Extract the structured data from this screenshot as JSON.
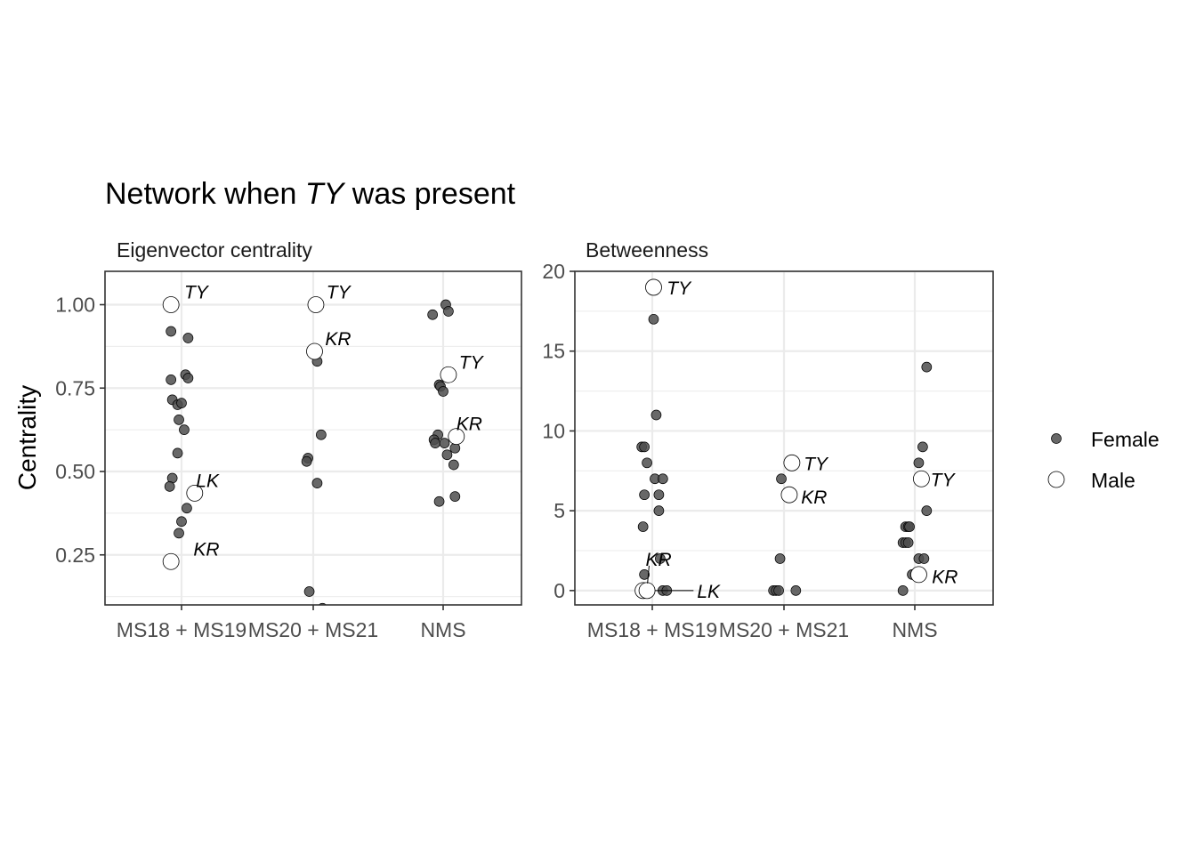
{
  "title": {
    "before": "Network when ",
    "italic": "TY",
    "after": " was present"
  },
  "ylabel": "Centrality",
  "colors": {
    "female": "#4d4d4d",
    "male": "#ffffff",
    "grid": "#ebebeb",
    "frame": "#333333"
  },
  "legend": {
    "items": [
      {
        "label": "Female",
        "kind": "female"
      },
      {
        "label": "Male",
        "kind": "male"
      }
    ],
    "position": "right"
  },
  "chart_data": [
    {
      "type": "scatter",
      "subtitle": "Eigenvector centrality",
      "categories": [
        "MS18 + MS19",
        "MS20 + MS21",
        "NMS"
      ],
      "ylim": [
        0.1,
        1.1
      ],
      "yticks": [
        0.25,
        0.5,
        0.75,
        1.0
      ],
      "ytick_labels": [
        "0.25",
        "0.50",
        "0.75",
        "1.00"
      ],
      "grid": true,
      "points": [
        {
          "cat": 0,
          "dx": -0.08,
          "y": 0.92,
          "sex": "female"
        },
        {
          "cat": 0,
          "dx": 0.05,
          "y": 0.9,
          "sex": "female"
        },
        {
          "cat": 0,
          "dx": 0.03,
          "y": 0.79,
          "sex": "female"
        },
        {
          "cat": 0,
          "dx": 0.05,
          "y": 0.78,
          "sex": "female"
        },
        {
          "cat": 0,
          "dx": -0.08,
          "y": 0.775,
          "sex": "female"
        },
        {
          "cat": 0,
          "dx": -0.07,
          "y": 0.715,
          "sex": "female"
        },
        {
          "cat": 0,
          "dx": -0.03,
          "y": 0.7,
          "sex": "female"
        },
        {
          "cat": 0,
          "dx": 0.0,
          "y": 0.705,
          "sex": "female"
        },
        {
          "cat": 0,
          "dx": -0.02,
          "y": 0.655,
          "sex": "female"
        },
        {
          "cat": 0,
          "dx": 0.02,
          "y": 0.625,
          "sex": "female"
        },
        {
          "cat": 0,
          "dx": -0.03,
          "y": 0.555,
          "sex": "female"
        },
        {
          "cat": 0,
          "dx": -0.07,
          "y": 0.48,
          "sex": "female"
        },
        {
          "cat": 0,
          "dx": -0.09,
          "y": 0.455,
          "sex": "female"
        },
        {
          "cat": 0,
          "dx": 0.04,
          "y": 0.39,
          "sex": "female"
        },
        {
          "cat": 0,
          "dx": 0.0,
          "y": 0.35,
          "sex": "female"
        },
        {
          "cat": 0,
          "dx": -0.02,
          "y": 0.315,
          "sex": "female"
        },
        {
          "cat": 1,
          "dx": 0.03,
          "y": 0.83,
          "sex": "female"
        },
        {
          "cat": 1,
          "dx": 0.06,
          "y": 0.61,
          "sex": "female"
        },
        {
          "cat": 1,
          "dx": -0.04,
          "y": 0.54,
          "sex": "female"
        },
        {
          "cat": 1,
          "dx": -0.05,
          "y": 0.53,
          "sex": "female"
        },
        {
          "cat": 1,
          "dx": 0.03,
          "y": 0.465,
          "sex": "female"
        },
        {
          "cat": 1,
          "dx": -0.03,
          "y": 0.14,
          "sex": "female"
        },
        {
          "cat": 1,
          "dx": 0.07,
          "y": 0.09,
          "sex": "female"
        },
        {
          "cat": 2,
          "dx": 0.02,
          "y": 1.0,
          "sex": "female"
        },
        {
          "cat": 2,
          "dx": -0.08,
          "y": 0.97,
          "sex": "female"
        },
        {
          "cat": 2,
          "dx": 0.04,
          "y": 0.98,
          "sex": "female"
        },
        {
          "cat": 2,
          "dx": -0.03,
          "y": 0.76,
          "sex": "female"
        },
        {
          "cat": 2,
          "dx": -0.02,
          "y": 0.755,
          "sex": "female"
        },
        {
          "cat": 2,
          "dx": 0.0,
          "y": 0.74,
          "sex": "female"
        },
        {
          "cat": 2,
          "dx": -0.04,
          "y": 0.61,
          "sex": "female"
        },
        {
          "cat": 2,
          "dx": -0.07,
          "y": 0.595,
          "sex": "female"
        },
        {
          "cat": 2,
          "dx": -0.06,
          "y": 0.585,
          "sex": "female"
        },
        {
          "cat": 2,
          "dx": 0.01,
          "y": 0.585,
          "sex": "female"
        },
        {
          "cat": 2,
          "dx": 0.09,
          "y": 0.57,
          "sex": "female"
        },
        {
          "cat": 2,
          "dx": 0.03,
          "y": 0.55,
          "sex": "female"
        },
        {
          "cat": 2,
          "dx": 0.08,
          "y": 0.52,
          "sex": "female"
        },
        {
          "cat": 2,
          "dx": 0.09,
          "y": 0.425,
          "sex": "female"
        },
        {
          "cat": 2,
          "dx": -0.03,
          "y": 0.41,
          "sex": "female"
        },
        {
          "cat": 0,
          "dx": -0.08,
          "y": 1.0,
          "sex": "male",
          "label": "TY",
          "ldx": 0.1,
          "ldy": 0.04
        },
        {
          "cat": 0,
          "dx": 0.1,
          "y": 0.435,
          "sex": "male",
          "label": "LK",
          "ldx": 0.01,
          "ldy": 0.04
        },
        {
          "cat": 0,
          "dx": -0.08,
          "y": 0.23,
          "sex": "male",
          "label": "KR",
          "ldx": 0.17,
          "ldy": 0.04
        },
        {
          "cat": 1,
          "dx": 0.02,
          "y": 1.0,
          "sex": "male",
          "label": "TY",
          "ldx": 0.08,
          "ldy": 0.04
        },
        {
          "cat": 1,
          "dx": 0.01,
          "y": 0.86,
          "sex": "male",
          "label": "KR",
          "ldx": 0.08,
          "ldy": 0.04
        },
        {
          "cat": 2,
          "dx": 0.04,
          "y": 0.79,
          "sex": "male",
          "label": "TY",
          "ldx": 0.08,
          "ldy": 0.04
        },
        {
          "cat": 2,
          "dx": 0.1,
          "y": 0.605,
          "sex": "male",
          "label": "KR",
          "ldx": 0.0,
          "ldy": 0.04
        }
      ]
    },
    {
      "type": "scatter",
      "subtitle": "Betweenness",
      "categories": [
        "MS18 + MS19",
        "MS20 + MS21",
        "NMS"
      ],
      "ylim": [
        -0.9,
        20.0
      ],
      "yticks": [
        0,
        5,
        10,
        15,
        20
      ],
      "ytick_labels": [
        "0",
        "5",
        "10",
        "15",
        "20"
      ],
      "grid": true,
      "points": [
        {
          "cat": 0,
          "dx": 0.01,
          "y": 17,
          "sex": "female"
        },
        {
          "cat": 0,
          "dx": 0.03,
          "y": 11,
          "sex": "female"
        },
        {
          "cat": 0,
          "dx": -0.08,
          "y": 9,
          "sex": "female"
        },
        {
          "cat": 0,
          "dx": -0.06,
          "y": 9,
          "sex": "female"
        },
        {
          "cat": 0,
          "dx": -0.04,
          "y": 8,
          "sex": "female"
        },
        {
          "cat": 0,
          "dx": 0.02,
          "y": 7,
          "sex": "female"
        },
        {
          "cat": 0,
          "dx": 0.08,
          "y": 7,
          "sex": "female"
        },
        {
          "cat": 0,
          "dx": -0.06,
          "y": 6,
          "sex": "female"
        },
        {
          "cat": 0,
          "dx": 0.05,
          "y": 6,
          "sex": "female"
        },
        {
          "cat": 0,
          "dx": 0.05,
          "y": 5,
          "sex": "female"
        },
        {
          "cat": 0,
          "dx": -0.07,
          "y": 4,
          "sex": "female"
        },
        {
          "cat": 0,
          "dx": 0.06,
          "y": 2,
          "sex": "female"
        },
        {
          "cat": 0,
          "dx": -0.06,
          "y": 1,
          "sex": "female"
        },
        {
          "cat": 0,
          "dx": 0.08,
          "y": 0,
          "sex": "female"
        },
        {
          "cat": 0,
          "dx": 0.11,
          "y": 0,
          "sex": "female"
        },
        {
          "cat": 0,
          "dx": -0.03,
          "y": 0,
          "sex": "female"
        },
        {
          "cat": 1,
          "dx": -0.02,
          "y": 7,
          "sex": "female"
        },
        {
          "cat": 1,
          "dx": -0.03,
          "y": 2,
          "sex": "female"
        },
        {
          "cat": 1,
          "dx": -0.08,
          "y": 0,
          "sex": "female"
        },
        {
          "cat": 1,
          "dx": -0.06,
          "y": 0,
          "sex": "female"
        },
        {
          "cat": 1,
          "dx": -0.04,
          "y": 0,
          "sex": "female"
        },
        {
          "cat": 1,
          "dx": 0.09,
          "y": 0,
          "sex": "female"
        },
        {
          "cat": 2,
          "dx": 0.09,
          "y": 14,
          "sex": "female"
        },
        {
          "cat": 2,
          "dx": 0.06,
          "y": 9,
          "sex": "female"
        },
        {
          "cat": 2,
          "dx": 0.03,
          "y": 8,
          "sex": "female"
        },
        {
          "cat": 2,
          "dx": 0.09,
          "y": 5,
          "sex": "female"
        },
        {
          "cat": 2,
          "dx": -0.07,
          "y": 4,
          "sex": "female"
        },
        {
          "cat": 2,
          "dx": -0.05,
          "y": 4,
          "sex": "female"
        },
        {
          "cat": 2,
          "dx": -0.04,
          "y": 4,
          "sex": "female"
        },
        {
          "cat": 2,
          "dx": -0.09,
          "y": 3,
          "sex": "female"
        },
        {
          "cat": 2,
          "dx": -0.07,
          "y": 3,
          "sex": "female"
        },
        {
          "cat": 2,
          "dx": -0.05,
          "y": 3,
          "sex": "female"
        },
        {
          "cat": 2,
          "dx": 0.03,
          "y": 2,
          "sex": "female"
        },
        {
          "cat": 2,
          "dx": 0.07,
          "y": 2,
          "sex": "female"
        },
        {
          "cat": 2,
          "dx": -0.02,
          "y": 1,
          "sex": "female"
        },
        {
          "cat": 2,
          "dx": 0.05,
          "y": 1,
          "sex": "female"
        },
        {
          "cat": 2,
          "dx": -0.09,
          "y": 0,
          "sex": "female"
        },
        {
          "cat": 0,
          "dx": 0.01,
          "y": 19,
          "sex": "male",
          "label": "TY",
          "ldx": 0.1,
          "ldy": 0
        },
        {
          "cat": 0,
          "dx": -0.07,
          "y": 0,
          "sex": "male",
          "label": "KR",
          "ldx": 0.1,
          "ldy": 2.0,
          "leader": true
        },
        {
          "cat": 0,
          "dx": -0.04,
          "y": 0,
          "sex": "male",
          "label": "LK",
          "ldx": 0.38,
          "ldy": 0,
          "leader": true
        },
        {
          "cat": 1,
          "dx": 0.06,
          "y": 8,
          "sex": "male",
          "label": "TY",
          "ldx": 0.09,
          "ldy": 0
        },
        {
          "cat": 1,
          "dx": 0.04,
          "y": 6,
          "sex": "male",
          "label": "KR",
          "ldx": 0.09,
          "ldy": -0.1
        },
        {
          "cat": 2,
          "dx": 0.05,
          "y": 7,
          "sex": "male",
          "label": "TY",
          "ldx": 0.07,
          "ldy": 0
        },
        {
          "cat": 2,
          "dx": 0.03,
          "y": 1,
          "sex": "male",
          "label": "KR",
          "ldx": 0.1,
          "ldy": -0.1
        }
      ]
    }
  ]
}
